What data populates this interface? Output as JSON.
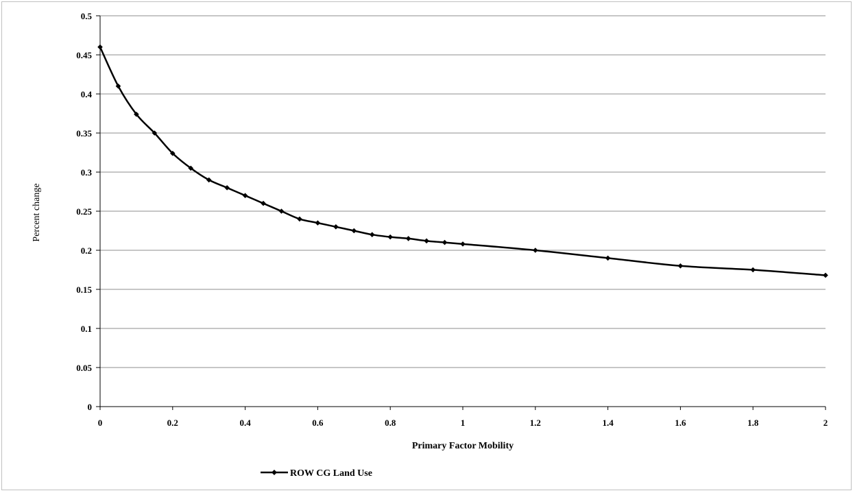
{
  "chart_data": {
    "type": "line",
    "title": "",
    "xlabel": "Primary Factor Mobility",
    "ylabel": "Percent change",
    "xlim": [
      0,
      2
    ],
    "ylim": [
      0,
      0.5
    ],
    "x_ticks": [
      "0",
      "0.2",
      "0.4",
      "0.6",
      "0.8",
      "1",
      "1.2",
      "1.4",
      "1.6",
      "1.8",
      "2"
    ],
    "y_ticks": [
      "0",
      "0.05",
      "0.1",
      "0.15",
      "0.2",
      "0.25",
      "0.3",
      "0.35",
      "0.4",
      "0.45",
      "0.5"
    ],
    "grid": "horizontal",
    "legend_position": "bottom",
    "line_color": "#000000",
    "series": [
      {
        "name": "ROW CG Land Use",
        "marker": "diamond",
        "x": [
          0,
          0.05,
          0.1,
          0.15,
          0.2,
          0.25,
          0.3,
          0.35,
          0.4,
          0.45,
          0.5,
          0.55,
          0.6,
          0.65,
          0.7,
          0.75,
          0.8,
          0.85,
          0.9,
          0.95,
          1.0,
          1.2,
          1.4,
          1.6,
          1.8,
          2.0
        ],
        "values": [
          0.46,
          0.41,
          0.374,
          0.35,
          0.324,
          0.305,
          0.29,
          0.28,
          0.27,
          0.26,
          0.25,
          0.24,
          0.235,
          0.23,
          0.225,
          0.22,
          0.217,
          0.215,
          0.212,
          0.21,
          0.208,
          0.2,
          0.19,
          0.18,
          0.175,
          0.168
        ]
      }
    ]
  }
}
